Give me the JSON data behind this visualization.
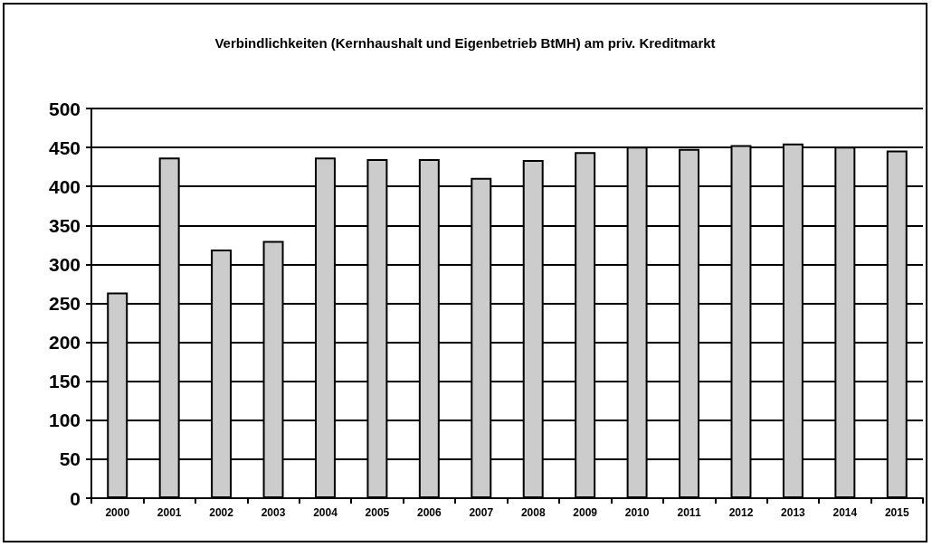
{
  "chart_data": {
    "type": "bar",
    "title": "Verbindlichkeiten (Kernhaushalt und Eigenbetrieb BtMH) am priv. Kreditmarkt",
    "categories": [
      "2000",
      "2001",
      "2002",
      "2003",
      "2004",
      "2005",
      "2006",
      "2007",
      "2008",
      "2009",
      "2010",
      "2011",
      "2012",
      "2013",
      "2014",
      "2015"
    ],
    "values": [
      264,
      437,
      319,
      330,
      437,
      435,
      435,
      411,
      434,
      444,
      451,
      448,
      453,
      455,
      451,
      446
    ],
    "color": "#cccccc",
    "ylim": [
      0,
      500
    ],
    "yticks": [
      0,
      50,
      100,
      150,
      200,
      250,
      300,
      350,
      400,
      450,
      500
    ],
    "grid": "y"
  }
}
